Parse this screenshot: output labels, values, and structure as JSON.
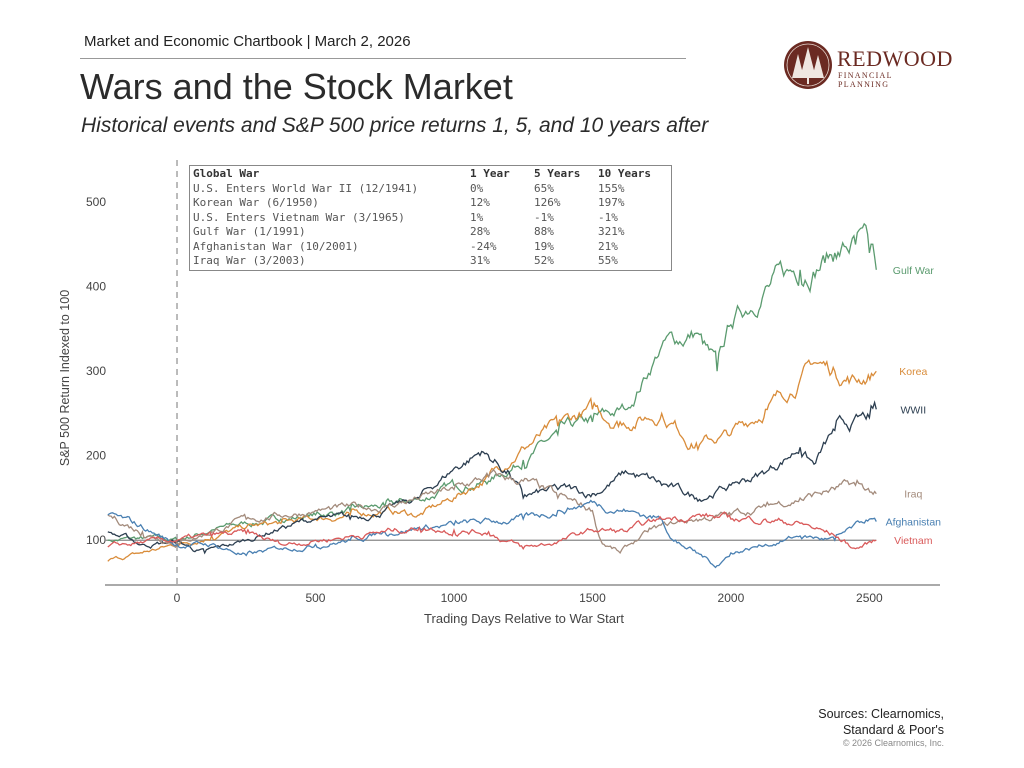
{
  "header": {
    "chartbook": "Market and Economic Chartbook | March 2, 2026",
    "title": "Wars and the Stock Market",
    "subtitle": "Historical events and S&P 500 price returns 1, 5, and 10 years after"
  },
  "logo": {
    "name": "REDWOOD",
    "tagline": "FINANCIAL PLANNING",
    "color": "#6b2a22"
  },
  "table": {
    "headers": [
      "Global War",
      "1 Year",
      "5 Years",
      "10 Years"
    ],
    "rows": [
      [
        "U.S. Enters World War II (12/1941)",
        "0%",
        "65%",
        "155%"
      ],
      [
        "Korean War (6/1950)",
        "12%",
        "126%",
        "197%"
      ],
      [
        "U.S. Enters Vietnam War (3/1965)",
        "1%",
        "-1%",
        "-1%"
      ],
      [
        "Gulf War (1/1991)",
        "28%",
        "88%",
        "321%"
      ],
      [
        "Afghanistan War (10/2001)",
        "-24%",
        "19%",
        "21%"
      ],
      [
        "Iraq War (3/2003)",
        "31%",
        "52%",
        "55%"
      ]
    ]
  },
  "footer": {
    "sources": [
      "Sources: Clearnomics,",
      "Standard & Poor's"
    ],
    "copyright": "© 2026 Clearnomics, Inc."
  },
  "chart_data": {
    "type": "line",
    "xlabel": "Trading Days Relative to War Start",
    "ylabel": "S&P 500 Return Indexed to 100",
    "xlim": [
      -260,
      2755
    ],
    "ylim": [
      47,
      550
    ],
    "xticks": [
      0,
      500,
      1000,
      1500,
      2000,
      2500
    ],
    "yticks": [
      100,
      200,
      300,
      400,
      500
    ],
    "reference_line_y": 100,
    "reference_line_x": 0,
    "grid": false,
    "legend": "inline labels at line ends",
    "series": [
      {
        "name": "Gulf War",
        "color": "#5b9b6f",
        "points": [
          [
            -250,
            100
          ],
          [
            -125,
            102
          ],
          [
            0,
            100
          ],
          [
            125,
            112
          ],
          [
            250,
            120
          ],
          [
            375,
            125
          ],
          [
            500,
            130
          ],
          [
            625,
            135
          ],
          [
            750,
            140
          ],
          [
            900,
            150
          ],
          [
            1000,
            165
          ],
          [
            1125,
            170
          ],
          [
            1250,
            195
          ],
          [
            1375,
            225
          ],
          [
            1500,
            240
          ],
          [
            1625,
            255
          ],
          [
            1750,
            330
          ],
          [
            1875,
            345
          ],
          [
            1950,
            300
          ],
          [
            2000,
            355
          ],
          [
            2125,
            400
          ],
          [
            2250,
            420
          ],
          [
            2375,
            440
          ],
          [
            2450,
            450
          ],
          [
            2500,
            440
          ],
          [
            2525,
            420
          ]
        ]
      },
      {
        "name": "Korea",
        "color": "#d98c3a",
        "points": [
          [
            -250,
            75
          ],
          [
            -125,
            85
          ],
          [
            0,
            95
          ],
          [
            125,
            105
          ],
          [
            250,
            115
          ],
          [
            375,
            120
          ],
          [
            500,
            125
          ],
          [
            625,
            130
          ],
          [
            750,
            135
          ],
          [
            875,
            130
          ],
          [
            1000,
            150
          ],
          [
            1125,
            175
          ],
          [
            1250,
            210
          ],
          [
            1375,
            235
          ],
          [
            1500,
            255
          ],
          [
            1600,
            240
          ],
          [
            1750,
            250
          ],
          [
            1875,
            215
          ],
          [
            2000,
            225
          ],
          [
            2125,
            255
          ],
          [
            2250,
            290
          ],
          [
            2300,
            310
          ],
          [
            2375,
            300
          ],
          [
            2450,
            290
          ],
          [
            2525,
            300
          ]
        ]
      },
      {
        "name": "WWII",
        "color": "#2c3e50",
        "points": [
          [
            -250,
            110
          ],
          [
            -125,
            95
          ],
          [
            0,
            98
          ],
          [
            100,
            85
          ],
          [
            250,
            100
          ],
          [
            375,
            115
          ],
          [
            500,
            125
          ],
          [
            625,
            125
          ],
          [
            750,
            135
          ],
          [
            875,
            150
          ],
          [
            1000,
            185
          ],
          [
            1100,
            205
          ],
          [
            1200,
            180
          ],
          [
            1250,
            150
          ],
          [
            1375,
            160
          ],
          [
            1500,
            155
          ],
          [
            1625,
            180
          ],
          [
            1750,
            165
          ],
          [
            1875,
            150
          ],
          [
            2000,
            165
          ],
          [
            2125,
            180
          ],
          [
            2250,
            210
          ],
          [
            2300,
            190
          ],
          [
            2375,
            230
          ],
          [
            2500,
            245
          ],
          [
            2525,
            255
          ]
        ]
      },
      {
        "name": "Iraq",
        "color": "#a38b7c",
        "points": [
          [
            -250,
            130
          ],
          [
            -125,
            110
          ],
          [
            0,
            98
          ],
          [
            125,
            110
          ],
          [
            250,
            125
          ],
          [
            500,
            135
          ],
          [
            750,
            140
          ],
          [
            1000,
            160
          ],
          [
            1125,
            175
          ],
          [
            1250,
            170
          ],
          [
            1375,
            150
          ],
          [
            1500,
            135
          ],
          [
            1530,
            100
          ],
          [
            1600,
            85
          ],
          [
            1700,
            110
          ],
          [
            1800,
            120
          ],
          [
            1875,
            125
          ],
          [
            2000,
            130
          ],
          [
            2125,
            140
          ],
          [
            2250,
            150
          ],
          [
            2375,
            160
          ],
          [
            2450,
            165
          ],
          [
            2525,
            155
          ]
        ]
      },
      {
        "name": "Afghanistan",
        "color": "#4a80b2",
        "points": [
          [
            -250,
            130
          ],
          [
            -125,
            115
          ],
          [
            0,
            95
          ],
          [
            125,
            95
          ],
          [
            250,
            82
          ],
          [
            375,
            90
          ],
          [
            500,
            95
          ],
          [
            625,
            100
          ],
          [
            750,
            110
          ],
          [
            875,
            115
          ],
          [
            1000,
            118
          ],
          [
            1250,
            125
          ],
          [
            1375,
            135
          ],
          [
            1500,
            145
          ],
          [
            1625,
            135
          ],
          [
            1750,
            125
          ],
          [
            1800,
            100
          ],
          [
            1875,
            85
          ],
          [
            1950,
            70
          ],
          [
            2000,
            85
          ],
          [
            2125,
            95
          ],
          [
            2250,
            105
          ],
          [
            2375,
            100
          ],
          [
            2500,
            125
          ],
          [
            2525,
            122
          ]
        ]
      },
      {
        "name": "Vietnam",
        "color": "#d95a5a",
        "points": [
          [
            -250,
            92
          ],
          [
            -125,
            97
          ],
          [
            0,
            100
          ],
          [
            125,
            105
          ],
          [
            250,
            108
          ],
          [
            375,
            95
          ],
          [
            500,
            100
          ],
          [
            625,
            105
          ],
          [
            750,
            110
          ],
          [
            875,
            115
          ],
          [
            1000,
            112
          ],
          [
            1125,
            110
          ],
          [
            1250,
            90
          ],
          [
            1375,
            98
          ],
          [
            1500,
            112
          ],
          [
            1625,
            110
          ],
          [
            1750,
            125
          ],
          [
            1875,
            130
          ],
          [
            2000,
            125
          ],
          [
            2125,
            125
          ],
          [
            2250,
            120
          ],
          [
            2375,
            105
          ],
          [
            2450,
            90
          ],
          [
            2525,
            100
          ]
        ]
      }
    ]
  }
}
